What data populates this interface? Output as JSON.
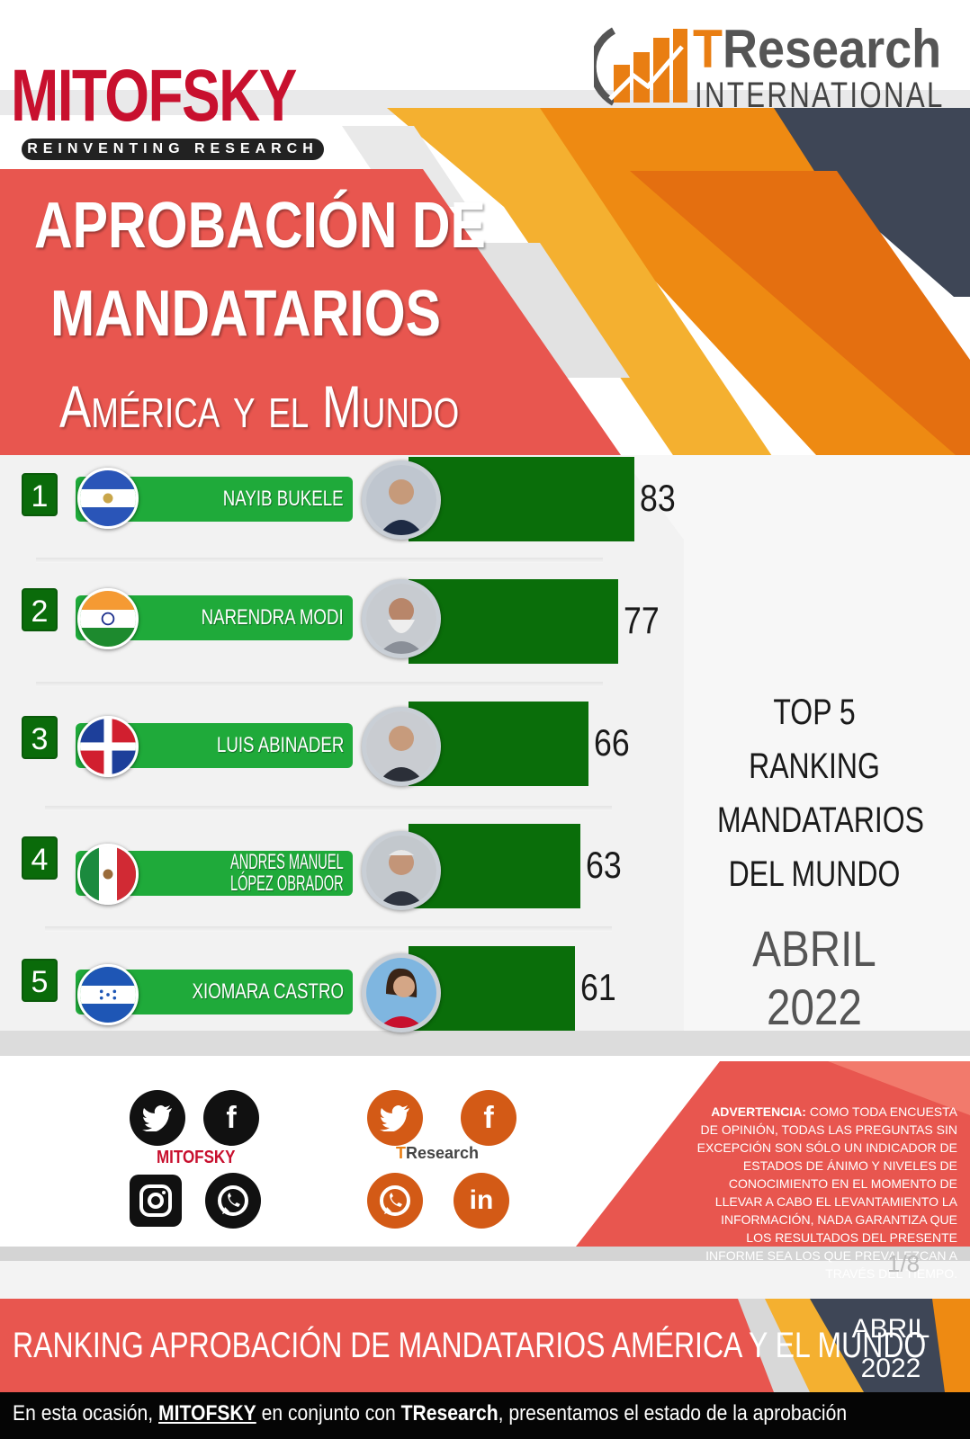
{
  "header": {
    "mitofsky_logo": "MITOFSKY",
    "mitofsky_tagline": "REINVENTING RESEARCH",
    "tresearch_logo_main": "TResearch",
    "tresearch_logo_sub": "INTERNATIONAL"
  },
  "title": {
    "line1": "APROBACIÓN DE",
    "line2": "MANDATARIOS",
    "line3": "América y el Mundo"
  },
  "chart_data": {
    "type": "bar",
    "title": "APROBACIÓN DE MANDATARIOS América y el Mundo",
    "orientation": "horizontal",
    "categories": [
      "NAYIB BUKELE",
      "NARENDRA MODI",
      "LUIS ABINADER",
      "ANDRES MANUEL LÓPEZ OBRADOR",
      "XIOMARA CASTRO"
    ],
    "values": [
      83,
      77,
      66,
      63,
      61
    ],
    "ranks": [
      "1",
      "2",
      "3",
      "4",
      "5"
    ],
    "value_labels": [
      "83",
      "77",
      "66",
      "63",
      "61"
    ],
    "bar_color": "#0a6e0a"
  },
  "rows": [
    {
      "rank": "1",
      "name": "NAYIB BUKELE",
      "value": "83",
      "flag": "el-salvador-flag"
    },
    {
      "rank": "2",
      "name": "NARENDRA MODI",
      "value": "77",
      "flag": "india-flag"
    },
    {
      "rank": "3",
      "name": "LUIS ABINADER",
      "value": "66",
      "flag": "dominican-republic-flag"
    },
    {
      "rank": "4",
      "name_line1": "ANDRES MANUEL",
      "name_line2": "LÓPEZ OBRADOR",
      "value": "63",
      "flag": "mexico-flag"
    },
    {
      "rank": "5",
      "name": "XIOMARA CASTRO",
      "value": "61",
      "flag": "honduras-flag"
    }
  ],
  "side_caption": {
    "line1": "TOP 5",
    "line2": "RANKING",
    "line3": "MANDATARIOS",
    "line4": "DEL MUNDO",
    "month": "ABRIL 2022"
  },
  "social": {
    "mitofsky_label": "MITOFSKY",
    "tresearch_label": "TResearch",
    "tresearch_sub": "INTERNATIONAL",
    "icons": [
      "twitter-icon",
      "facebook-icon",
      "instagram-icon",
      "whatsapp-icon",
      "linkedin-icon"
    ]
  },
  "warning": {
    "head": "ADVERTENCIA:",
    "text": "COMO TODA ENCUESTA DE OPINIÓN, TODAS LAS PREGUNTAS SIN EXCEPCIÓN SON SÓLO UN INDICADOR DE ESTADOS DE ÁNIMO Y NIVELES DE CONOCIMIENTO EN EL MOMENTO DE LLEVAR A CABO EL LEVANTAMIENTO LA INFORMACIÓN, NADA GARANTIZA QUE LOS RESULTADOS DEL PRESENTE INFORME SEA LOS QUE PREVALEZCAN A TRAVÉS DEL TIEMPO."
  },
  "page": "1/8",
  "footer": {
    "title": "RANKING APROBACIÓN DE MANDATARIOS AMÉRICA Y EL MUNDO",
    "date_line1": "ABRIL",
    "date_line2": "2022",
    "caption_prefix": "En esta ocasión,",
    "caption_mitofsky": "MITOFSKY",
    "caption_middle": "en conjunto con",
    "caption_tresearch": "TResearch",
    "caption_suffix": ", presentamos el estado de la aprobación"
  },
  "colors": {
    "red": "#e8564f",
    "orange": "#ee8a12",
    "light_orange": "#f4b030",
    "navy": "#3e4656",
    "green_bar": "#0a6e0a",
    "green_pill": "#1faa3a"
  }
}
